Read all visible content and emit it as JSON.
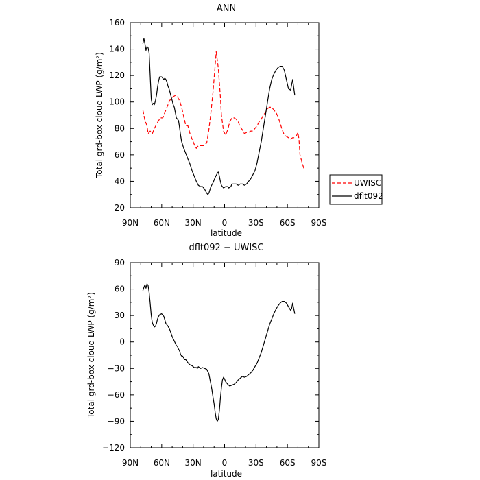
{
  "chart_data": [
    {
      "type": "line",
      "title": "ANN",
      "xlabel": "latitude",
      "ylabel": "Total grd-box cloud LWP (g/m²)",
      "ylim": [
        20,
        160
      ],
      "xlim": [
        90,
        -90
      ],
      "yticks": [
        20,
        40,
        60,
        80,
        100,
        120,
        140,
        160
      ],
      "xticks": [
        90,
        60,
        30,
        0,
        -30,
        -60,
        -90
      ],
      "xtick_labels": [
        "90N",
        "60N",
        "30N",
        "0",
        "30S",
        "60S",
        "90S"
      ],
      "legend": {
        "placement": "right",
        "entries": [
          "UWISC",
          "dflt092"
        ]
      },
      "series": [
        {
          "name": "UWISC",
          "color": "#ff0000",
          "dash": "dashed",
          "points": [
            [
              78,
              94
            ],
            [
              76,
              86
            ],
            [
              74,
              82
            ],
            [
              73,
              76
            ],
            [
              71,
              78
            ],
            [
              69,
              76
            ],
            [
              67,
              80
            ],
            [
              65,
              83
            ],
            [
              63,
              86
            ],
            [
              61,
              88
            ],
            [
              59,
              88
            ],
            [
              57,
              92
            ],
            [
              55,
              96
            ],
            [
              53,
              100
            ],
            [
              51,
              103
            ],
            [
              49,
              104
            ],
            [
              47,
              105
            ],
            [
              45,
              104
            ],
            [
              43,
              101
            ],
            [
              41,
              96
            ],
            [
              39,
              89
            ],
            [
              37,
              82
            ],
            [
              35,
              82
            ],
            [
              33,
              76
            ],
            [
              31,
              72
            ],
            [
              29,
              68
            ],
            [
              27,
              65
            ],
            [
              25,
              67
            ],
            [
              22,
              67
            ],
            [
              20,
              67
            ],
            [
              17,
              69
            ],
            [
              15,
              79
            ],
            [
              13,
              92
            ],
            [
              11,
              108
            ],
            [
              9,
              128
            ],
            [
              8,
              138
            ],
            [
              6,
              126
            ],
            [
              4,
              104
            ],
            [
              3,
              90
            ],
            [
              1,
              78
            ],
            [
              -1,
              75
            ],
            [
              -3,
              79
            ],
            [
              -5,
              85
            ],
            [
              -7,
              88
            ],
            [
              -9,
              88
            ],
            [
              -11,
              87
            ],
            [
              -13,
              85
            ],
            [
              -15,
              81
            ],
            [
              -17,
              79
            ],
            [
              -19,
              76
            ],
            [
              -21,
              77
            ],
            [
              -23,
              77
            ],
            [
              -25,
              78
            ],
            [
              -27,
              78
            ],
            [
              -29,
              80
            ],
            [
              -31,
              82
            ],
            [
              -33,
              85
            ],
            [
              -35,
              87
            ],
            [
              -37,
              90
            ],
            [
              -39,
              92
            ],
            [
              -41,
              95
            ],
            [
              -43,
              96
            ],
            [
              -45,
              96
            ],
            [
              -47,
              94
            ],
            [
              -49,
              92
            ],
            [
              -51,
              89
            ],
            [
              -53,
              84
            ],
            [
              -55,
              79
            ],
            [
              -57,
              75
            ],
            [
              -59,
              74
            ],
            [
              -61,
              73
            ],
            [
              -63,
              72
            ],
            [
              -65,
              73
            ],
            [
              -67,
              73
            ],
            [
              -69,
              75
            ],
            [
              -70,
              77
            ],
            [
              -71,
              72
            ],
            [
              -72,
              60
            ],
            [
              -74,
              54
            ],
            [
              -76,
              49
            ]
          ]
        },
        {
          "name": "dflt092",
          "color": "#000000",
          "dash": "solid",
          "points": [
            [
              78,
              144
            ],
            [
              77,
              148
            ],
            [
              76,
              144
            ],
            [
              75,
              139
            ],
            [
              74,
              142
            ],
            [
              73,
              141
            ],
            [
              72,
              137
            ],
            [
              71,
              120
            ],
            [
              70,
              102
            ],
            [
              69,
              98
            ],
            [
              68,
              99
            ],
            [
              67,
              98
            ],
            [
              66,
              101
            ],
            [
              65,
              105
            ],
            [
              64,
              111
            ],
            [
              63,
              116
            ],
            [
              62,
              119
            ],
            [
              60,
              119
            ],
            [
              58,
              117
            ],
            [
              57,
              118
            ],
            [
              56,
              117
            ],
            [
              55,
              115
            ],
            [
              54,
              112
            ],
            [
              53,
              110
            ],
            [
              52,
              107
            ],
            [
              51,
              104
            ],
            [
              50,
              101
            ],
            [
              49,
              98
            ],
            [
              48,
              96
            ],
            [
              47,
              92
            ],
            [
              46,
              88
            ],
            [
              45,
              87
            ],
            [
              44,
              86
            ],
            [
              43,
              81
            ],
            [
              42,
              75
            ],
            [
              41,
              70
            ],
            [
              39,
              65
            ],
            [
              37,
              61
            ],
            [
              35,
              57
            ],
            [
              33,
              53
            ],
            [
              31,
              48
            ],
            [
              29,
              44
            ],
            [
              27,
              40
            ],
            [
              25,
              37
            ],
            [
              23,
              36
            ],
            [
              21,
              36
            ],
            [
              19,
              34
            ],
            [
              17,
              31
            ],
            [
              16,
              30
            ],
            [
              15,
              31
            ],
            [
              13,
              36
            ],
            [
              11,
              39
            ],
            [
              9,
              43
            ],
            [
              7,
              46
            ],
            [
              6,
              47
            ],
            [
              5,
              44
            ],
            [
              4,
              40
            ],
            [
              3,
              37
            ],
            [
              2,
              36
            ],
            [
              1,
              35
            ],
            [
              -1,
              36
            ],
            [
              -3,
              36
            ],
            [
              -4,
              35
            ],
            [
              -6,
              36
            ],
            [
              -7,
              38
            ],
            [
              -9,
              38
            ],
            [
              -11,
              38
            ],
            [
              -13,
              37
            ],
            [
              -15,
              38
            ],
            [
              -17,
              38
            ],
            [
              -19,
              37
            ],
            [
              -21,
              38
            ],
            [
              -23,
              40
            ],
            [
              -25,
              42
            ],
            [
              -27,
              45
            ],
            [
              -29,
              48
            ],
            [
              -31,
              54
            ],
            [
              -33,
              62
            ],
            [
              -35,
              70
            ],
            [
              -37,
              80
            ],
            [
              -39,
              90
            ],
            [
              -41,
              100
            ],
            [
              -43,
              110
            ],
            [
              -45,
              117
            ],
            [
              -47,
              121
            ],
            [
              -49,
              124
            ],
            [
              -51,
              126
            ],
            [
              -53,
              127
            ],
            [
              -55,
              127
            ],
            [
              -57,
              124
            ],
            [
              -59,
              117
            ],
            [
              -61,
              110
            ],
            [
              -63,
              109
            ],
            [
              -64,
              113
            ],
            [
              -65,
              117
            ],
            [
              -66,
              111
            ],
            [
              -67,
              105
            ]
          ]
        }
      ]
    },
    {
      "type": "line",
      "title": "dflt092 − UWISC",
      "xlabel": "latitude",
      "ylabel": "Total grd-box cloud LWP (g/m²)",
      "ylim": [
        -120,
        90
      ],
      "xlim": [
        90,
        -90
      ],
      "yticks": [
        -120,
        -90,
        -60,
        -30,
        0,
        30,
        60,
        90
      ],
      "xticks": [
        90,
        60,
        30,
        0,
        -30,
        -60,
        -90
      ],
      "xtick_labels": [
        "90N",
        "60N",
        "30N",
        "0",
        "30S",
        "60S",
        "90S"
      ],
      "series": [
        {
          "color": "#000000",
          "dash": "solid",
          "points": [
            [
              78,
              58
            ],
            [
              77,
              62
            ],
            [
              76,
              65
            ],
            [
              75,
              61
            ],
            [
              74,
              66
            ],
            [
              73,
              64
            ],
            [
              72,
              56
            ],
            [
              71,
              44
            ],
            [
              70,
              30
            ],
            [
              69,
              22
            ],
            [
              68,
              19
            ],
            [
              67,
              17
            ],
            [
              66,
              18
            ],
            [
              65,
              21
            ],
            [
              64,
              26
            ],
            [
              63,
              29
            ],
            [
              62,
              31
            ],
            [
              60,
              32
            ],
            [
              58,
              29
            ],
            [
              57,
              25
            ],
            [
              56,
              21
            ],
            [
              54,
              18
            ],
            [
              52,
              13
            ],
            [
              50,
              6
            ],
            [
              48,
              1
            ],
            [
              46,
              -4
            ],
            [
              45,
              -5
            ],
            [
              44,
              -8
            ],
            [
              43,
              -10
            ],
            [
              42,
              -14
            ],
            [
              41,
              -16
            ],
            [
              40,
              -16
            ],
            [
              39,
              -18
            ],
            [
              38,
              -20
            ],
            [
              37,
              -20
            ],
            [
              36,
              -22
            ],
            [
              34,
              -25
            ],
            [
              33,
              -26
            ],
            [
              31,
              -27
            ],
            [
              30,
              -28
            ],
            [
              29,
              -29
            ],
            [
              27,
              -29
            ],
            [
              26,
              -30
            ],
            [
              25,
              -28
            ],
            [
              23,
              -30
            ],
            [
              21,
              -29
            ],
            [
              19,
              -30
            ],
            [
              17,
              -31
            ],
            [
              15,
              -36
            ],
            [
              14,
              -42
            ],
            [
              13,
              -48
            ],
            [
              12,
              -55
            ],
            [
              11,
              -63
            ],
            [
              10,
              -70
            ],
            [
              9,
              -80
            ],
            [
              8,
              -87
            ],
            [
              7,
              -90
            ],
            [
              6,
              -88
            ],
            [
              5,
              -78
            ],
            [
              4,
              -64
            ],
            [
              3,
              -52
            ],
            [
              2,
              -43
            ],
            [
              1,
              -40
            ],
            [
              0,
              -42
            ],
            [
              -1,
              -45
            ],
            [
              -3,
              -48
            ],
            [
              -5,
              -50
            ],
            [
              -7,
              -49
            ],
            [
              -9,
              -48
            ],
            [
              -11,
              -46
            ],
            [
              -13,
              -43
            ],
            [
              -15,
              -41
            ],
            [
              -17,
              -39
            ],
            [
              -19,
              -40
            ],
            [
              -21,
              -39
            ],
            [
              -23,
              -37
            ],
            [
              -25,
              -35
            ],
            [
              -27,
              -32
            ],
            [
              -29,
              -28
            ],
            [
              -31,
              -24
            ],
            [
              -33,
              -18
            ],
            [
              -35,
              -12
            ],
            [
              -37,
              -4
            ],
            [
              -39,
              4
            ],
            [
              -41,
              12
            ],
            [
              -43,
              20
            ],
            [
              -45,
              26
            ],
            [
              -47,
              32
            ],
            [
              -49,
              37
            ],
            [
              -51,
              41
            ],
            [
              -53,
              44
            ],
            [
              -55,
              46
            ],
            [
              -57,
              46
            ],
            [
              -59,
              44
            ],
            [
              -61,
              40
            ],
            [
              -63,
              36
            ],
            [
              -64,
              38
            ],
            [
              -65,
              44
            ],
            [
              -66,
              38
            ],
            [
              -67,
              32
            ]
          ]
        }
      ]
    }
  ]
}
